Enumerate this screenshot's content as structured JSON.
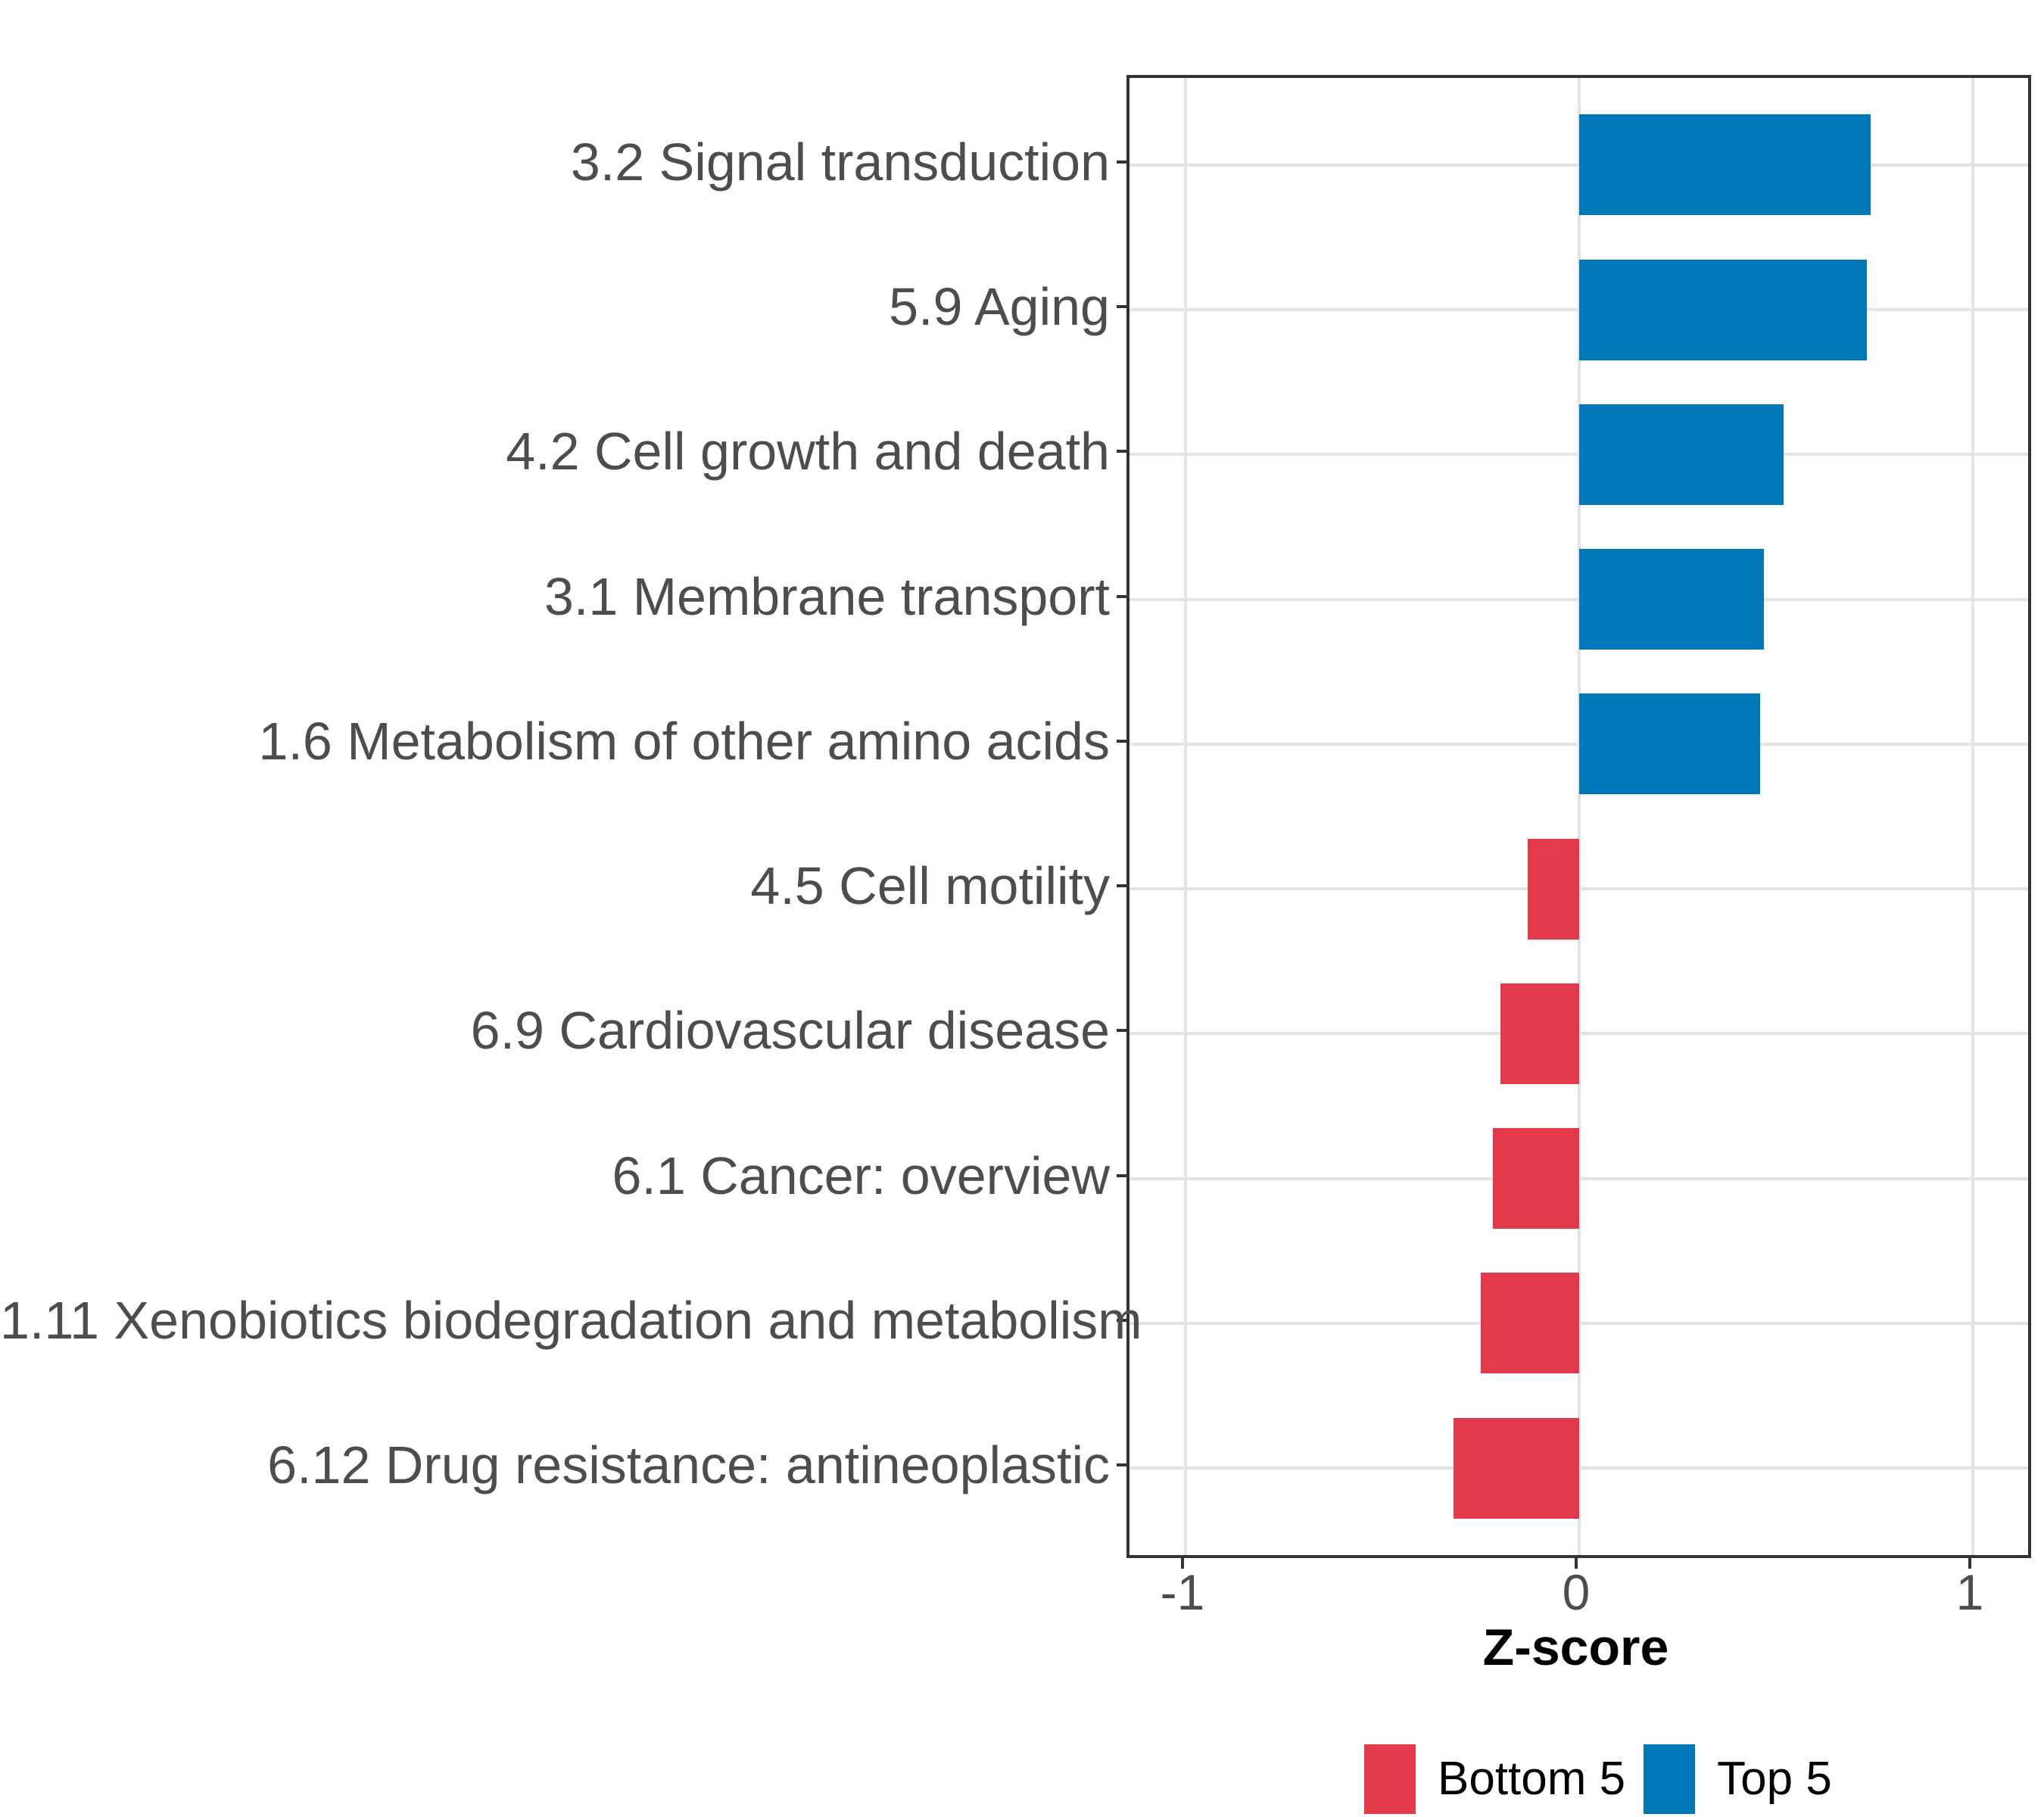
{
  "figure": {
    "background": "#ffffff"
  },
  "chart_data": {
    "type": "bar",
    "orientation": "horizontal",
    "xlabel": "Z-score",
    "ylabel": "",
    "xlim": [
      -1.14,
      1.14
    ],
    "x_ticks": [
      -1,
      0,
      1
    ],
    "x_tick_labels": [
      "-1",
      "0",
      "1"
    ],
    "grid": true,
    "categories": [
      "3.2 Signal transduction",
      "5.9 Aging",
      "4.2 Cell growth and death",
      "3.1 Membrane transport",
      "1.6 Metabolism of other amino acids",
      "4.5 Cell motility",
      "6.9 Cardiovascular disease",
      "6.1 Cancer: overview",
      "1.11 Xenobiotics biodegradation and metabolism",
      "6.12 Drug resistance: antineoplastic"
    ],
    "values": [
      0.74,
      0.73,
      0.52,
      0.47,
      0.46,
      -0.13,
      -0.2,
      -0.22,
      -0.25,
      -0.32
    ],
    "groups": [
      "Top 5",
      "Top 5",
      "Top 5",
      "Top 5",
      "Top 5",
      "Bottom 5",
      "Bottom 5",
      "Bottom 5",
      "Bottom 5",
      "Bottom 5"
    ],
    "group_colors": {
      "Top 5": "#0077b6",
      "Bottom 5": "#e4394a"
    },
    "legend": {
      "position": "bottom",
      "entries": [
        {
          "label": "Bottom 5",
          "color": "#e4394a"
        },
        {
          "label": "Top 5",
          "color": "#0077b6"
        }
      ]
    },
    "style": {
      "grid_color": "#e4e4e4",
      "panel_border_color": "#333333",
      "tick_color": "#333333",
      "axis_text_color": "#4d4d4d",
      "axis_title_color": "#000000"
    }
  }
}
